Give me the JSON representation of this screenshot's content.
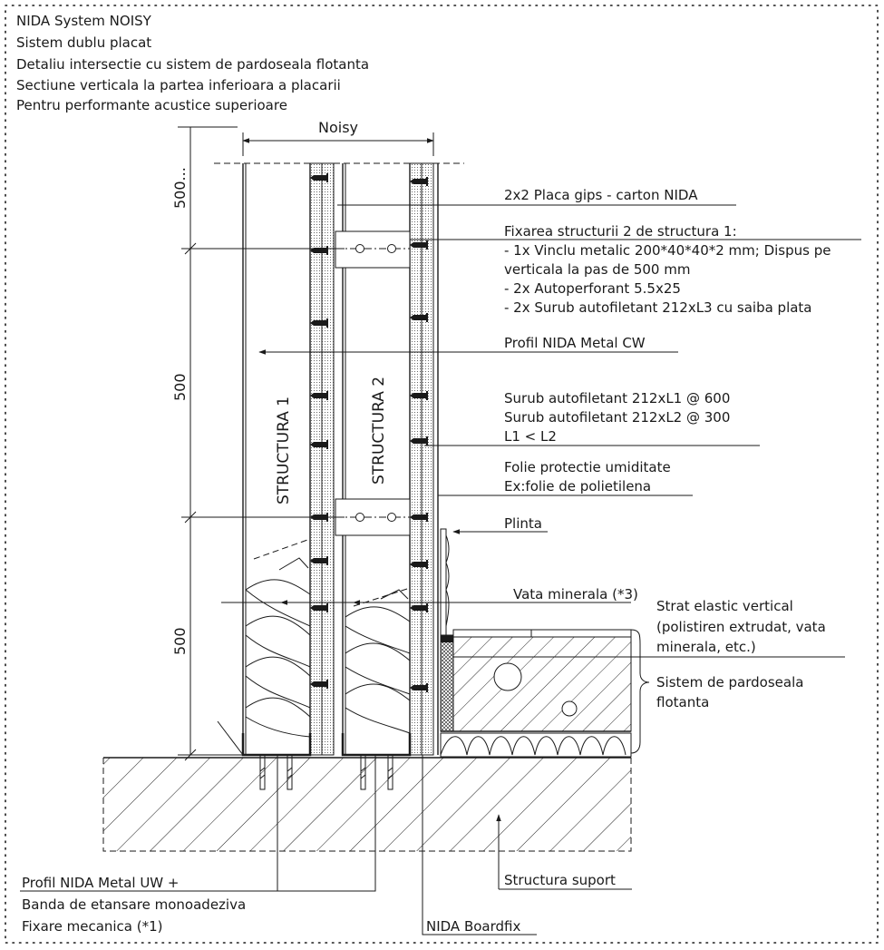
{
  "header": {
    "lines": [
      "NIDA System NOISY",
      "Sistem dublu placat",
      "Detaliu intersectie cu sistem de pardoseala flotanta",
      "Sectiune verticala la partea inferioara a placarii",
      "Pentru performante acustice superioare"
    ]
  },
  "dimensions": {
    "top_width": "Noisy",
    "v_top": "500...",
    "v_mid": "500",
    "v_bot": "500"
  },
  "structures": {
    "s1": "STRUCTURA 1",
    "s2": "STRUCTURA 2"
  },
  "callouts": {
    "placa": "2x2 Placa gips - carton NIDA",
    "fix_title": "Fixarea structurii 2 de structura 1:",
    "fix_1": "- 1x Vinclu metalic 200*40*40*2 mm; Dispus pe",
    "fix_2": "verticala la pas de 500 mm",
    "fix_3": "- 2x Autoperforant 5.5x25",
    "fix_4": "- 2x Surub autofiletant 212xL3 cu saiba plata",
    "profil_cw": "Profil NIDA Metal CW",
    "surub_1": "Surub autofiletant 212xL1 @ 600",
    "surub_2": "Surub autofiletant 212xL2 @ 300",
    "surub_3": "L1 < L2",
    "folie_1": "Folie protectie umiditate",
    "folie_2": "Ex:folie de polietilena",
    "plinta": "Plinta",
    "vata": "Vata minerala (*3)",
    "strat_1": "Strat elastic vertical",
    "strat_2": "(polistiren extrudat, vata",
    "strat_3": "minerala, etc.)",
    "sistem_1": "Sistem de pardoseala",
    "sistem_2": "flotanta",
    "uw_1": "Profil NIDA Metal UW +",
    "uw_2": "Banda de etansare monoadeziva",
    "uw_3": "Fixare mecanica (*1)",
    "structura_suport": "Structura suport",
    "boardfix": "NIDA Boardfix"
  }
}
